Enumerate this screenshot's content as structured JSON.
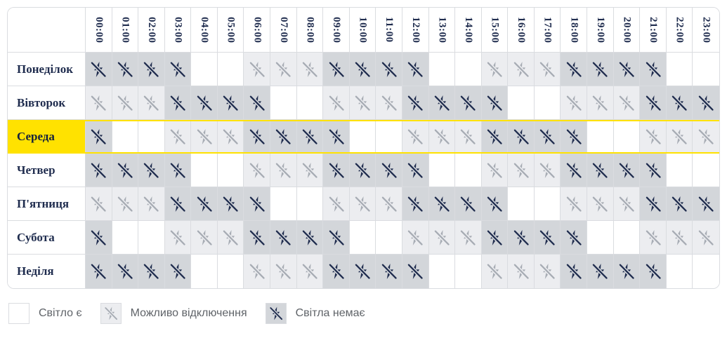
{
  "chart_data": {
    "type": "heatmap",
    "title": "",
    "x_labels": [
      "00:00",
      "01:00",
      "02:00",
      "03:00",
      "04:00",
      "05:00",
      "06:00",
      "07:00",
      "08:00",
      "09:00",
      "10:00",
      "11:00",
      "12:00",
      "13:00",
      "14:00",
      "15:00",
      "16:00",
      "17:00",
      "18:00",
      "19:00",
      "20:00",
      "21:00",
      "22:00",
      "23:00"
    ],
    "y_labels": [
      "Понеділок",
      "Вівторок",
      "Середа",
      "Четвер",
      "П'ятниця",
      "Субота",
      "Неділя"
    ],
    "highlighted_row": "Середа",
    "state_meaning": {
      "on": "Світло є",
      "maybe": "Можливо відключення",
      "off": "Світла немає"
    },
    "cell_states": [
      [
        "off",
        "off",
        "off",
        "off",
        "on",
        "on",
        "maybe",
        "maybe",
        "maybe",
        "off",
        "off",
        "off",
        "off",
        "on",
        "on",
        "maybe",
        "maybe",
        "maybe",
        "off",
        "off",
        "off",
        "off",
        "on",
        "on"
      ],
      [
        "maybe",
        "maybe",
        "maybe",
        "off",
        "off",
        "off",
        "off",
        "on",
        "on",
        "maybe",
        "maybe",
        "maybe",
        "off",
        "off",
        "off",
        "off",
        "on",
        "on",
        "maybe",
        "maybe",
        "maybe",
        "off",
        "off",
        "off"
      ],
      [
        "off",
        "on",
        "on",
        "maybe",
        "maybe",
        "maybe",
        "off",
        "off",
        "off",
        "off",
        "on",
        "on",
        "maybe",
        "maybe",
        "maybe",
        "off",
        "off",
        "off",
        "off",
        "on",
        "on",
        "maybe",
        "maybe",
        "maybe"
      ],
      [
        "off",
        "off",
        "off",
        "off",
        "on",
        "on",
        "maybe",
        "maybe",
        "maybe",
        "off",
        "off",
        "off",
        "off",
        "on",
        "on",
        "maybe",
        "maybe",
        "maybe",
        "off",
        "off",
        "off",
        "off",
        "on",
        "on"
      ],
      [
        "maybe",
        "maybe",
        "maybe",
        "off",
        "off",
        "off",
        "off",
        "on",
        "on",
        "maybe",
        "maybe",
        "maybe",
        "off",
        "off",
        "off",
        "off",
        "on",
        "on",
        "maybe",
        "maybe",
        "maybe",
        "off",
        "off",
        "off"
      ],
      [
        "off",
        "on",
        "on",
        "maybe",
        "maybe",
        "maybe",
        "off",
        "off",
        "off",
        "off",
        "on",
        "on",
        "maybe",
        "maybe",
        "maybe",
        "off",
        "off",
        "off",
        "off",
        "on",
        "on",
        "maybe",
        "maybe",
        "maybe"
      ],
      [
        "off",
        "off",
        "off",
        "off",
        "on",
        "on",
        "maybe",
        "maybe",
        "maybe",
        "off",
        "off",
        "off",
        "off",
        "on",
        "on",
        "maybe",
        "maybe",
        "maybe",
        "off",
        "off",
        "off",
        "off",
        "on",
        "on"
      ]
    ]
  },
  "legend": {
    "items": [
      {
        "state": "on",
        "label": "Світло є"
      },
      {
        "state": "maybe",
        "label": "Можливо відключення"
      },
      {
        "state": "off",
        "label": "Світла немає"
      }
    ]
  },
  "colors": {
    "navy": "#1f2c4e",
    "cell_off_bg": "#d3d6da",
    "cell_maybe_bg": "#ecedf0",
    "faded_icon": "#a7acb4",
    "gridline": "#dadce0",
    "highlight_yellow": "#ffe200",
    "legend_text": "#5f6368"
  }
}
